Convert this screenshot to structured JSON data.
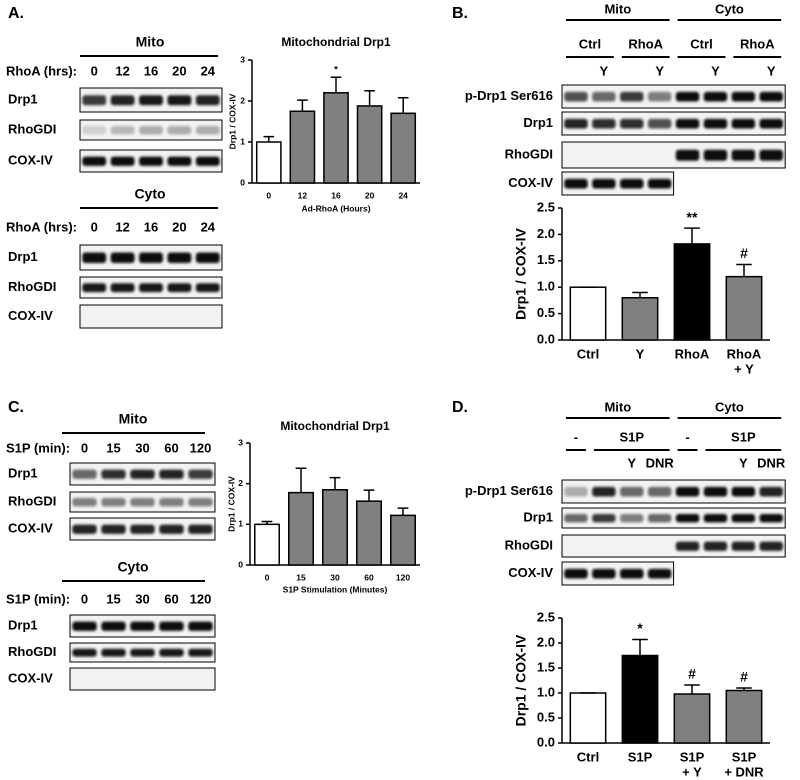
{
  "panels": {
    "A": {
      "letter": "A.",
      "mito": {
        "title": "Mito",
        "lane_header": "RhoA (hrs):",
        "lanes": [
          "0",
          "12",
          "16",
          "20",
          "24"
        ],
        "rows": [
          "Drp1",
          "RhoGDI",
          "COX-IV"
        ]
      },
      "cyto": {
        "title": "Cyto",
        "lane_header": "RhoA (hrs):",
        "lanes": [
          "0",
          "12",
          "16",
          "20",
          "24"
        ],
        "rows": [
          "Drp1",
          "RhoGDI",
          "COX-IV"
        ]
      }
    },
    "B": {
      "letter": "B.",
      "groups": [
        {
          "title": "Mito",
          "treatments": [
            {
              "name": "Ctrl",
              "lanes": [
                null,
                "Y"
              ]
            },
            {
              "name": "RhoA",
              "lanes": [
                null,
                "Y"
              ]
            }
          ]
        },
        {
          "title": "Cyto",
          "treatments": [
            {
              "name": "Ctrl",
              "lanes": [
                null,
                "Y"
              ]
            },
            {
              "name": "RhoA",
              "lanes": [
                null,
                "Y"
              ]
            }
          ]
        }
      ],
      "rows": [
        "p-Drp1 Ser616",
        "Drp1",
        "RhoGDI",
        "COX-IV"
      ]
    },
    "C": {
      "letter": "C.",
      "mito": {
        "title": "Mito",
        "lane_header": "S1P (min):",
        "lanes": [
          "0",
          "15",
          "30",
          "60",
          "120"
        ],
        "rows": [
          "Drp1",
          "RhoGDI",
          "COX-IV"
        ]
      },
      "cyto": {
        "title": "Cyto",
        "lane_header": "S1P (min):",
        "lanes": [
          "0",
          "15",
          "30",
          "60",
          "120"
        ],
        "rows": [
          "Drp1",
          "RhoGDI",
          "COX-IV"
        ]
      }
    },
    "D": {
      "letter": "D.",
      "groups": [
        {
          "title": "Mito",
          "treatments": [
            {
              "name": "-",
              "lanes": [
                null
              ]
            },
            {
              "name": "S1P",
              "lanes": [
                null,
                "Y",
                "DNR"
              ]
            }
          ]
        },
        {
          "title": "Cyto",
          "treatments": [
            {
              "name": "-",
              "lanes": [
                null
              ]
            },
            {
              "name": "S1P",
              "lanes": [
                null,
                "Y",
                "DNR"
              ]
            }
          ]
        }
      ],
      "rows": [
        "p-Drp1 Ser616",
        "Drp1",
        "RhoGDI",
        "COX-IV"
      ]
    }
  },
  "chart_data": [
    {
      "type": "bar",
      "title": "Mitochondrial Drp1",
      "y_label": "Drp1 / COX-IV",
      "x_label": "Ad-RhoA (Hours)",
      "categories": [
        [
          "0"
        ],
        [
          "12"
        ],
        [
          "16"
        ],
        [
          "20"
        ],
        [
          "24"
        ]
      ],
      "values": [
        1.0,
        1.75,
        2.2,
        1.88,
        1.7
      ],
      "errors": [
        0.13,
        0.27,
        0.38,
        0.37,
        0.38
      ],
      "colors": [
        "#ffffff",
        "#808080",
        "#808080",
        "#808080",
        "#808080"
      ],
      "annotations": [
        null,
        null,
        "*",
        null,
        null
      ],
      "ylim": [
        0,
        3
      ],
      "yticks": [
        0,
        1,
        2,
        3
      ],
      "grid": false
    },
    {
      "type": "bar",
      "y_label": "Drp1 / COX-IV",
      "categories": [
        [
          "Ctrl"
        ],
        [
          "Y"
        ],
        [
          "RhoA"
        ],
        [
          "RhoA",
          "+ Y"
        ]
      ],
      "values": [
        1.0,
        0.8,
        1.82,
        1.2
      ],
      "errors": [
        0,
        0.1,
        0.3,
        0.23
      ],
      "colors": [
        "#ffffff",
        "#808080",
        "#000000",
        "#808080"
      ],
      "annotations": [
        null,
        null,
        "**",
        "#"
      ],
      "ylim": [
        0,
        2.5
      ],
      "yticks": [
        {
          "value": 0,
          "label": "0.0"
        },
        0.5,
        {
          "value": 1,
          "label": "1.0"
        },
        1.5,
        {
          "value": 2,
          "label": "2.0"
        },
        2.5
      ],
      "grid": false
    },
    {
      "type": "bar",
      "title": "Mitochondrial Drp1",
      "y_label": "Drp1 / COX-IV",
      "x_label": "S1P Stimulation (Minutes)",
      "categories": [
        [
          "0"
        ],
        [
          "15"
        ],
        [
          "30"
        ],
        [
          "60"
        ],
        [
          "120"
        ]
      ],
      "values": [
        1.0,
        1.78,
        1.85,
        1.57,
        1.22
      ],
      "errors": [
        0.07,
        0.6,
        0.3,
        0.27,
        0.18
      ],
      "colors": [
        "#ffffff",
        "#808080",
        "#808080",
        "#808080",
        "#808080"
      ],
      "annotations": [
        null,
        null,
        null,
        null,
        null
      ],
      "ylim": [
        0,
        3
      ],
      "yticks": [
        0,
        1,
        2,
        3
      ],
      "grid": false
    },
    {
      "type": "bar",
      "y_label": "Drp1 / COX-IV",
      "categories": [
        [
          "Ctrl"
        ],
        [
          "S1P"
        ],
        [
          "S1P",
          "+ Y"
        ],
        [
          "S1P",
          "+ DNR"
        ]
      ],
      "values": [
        1.0,
        1.75,
        0.98,
        1.05
      ],
      "errors": [
        0,
        0.32,
        0.18,
        0.05
      ],
      "colors": [
        "#ffffff",
        "#000000",
        "#808080",
        "#808080"
      ],
      "annotations": [
        null,
        "*",
        "#",
        "#"
      ],
      "ylim": [
        0,
        2.5
      ],
      "yticks": [
        {
          "value": 0,
          "label": "0.0"
        },
        0.5,
        {
          "value": 1,
          "label": "1.0"
        },
        1.5,
        {
          "value": 2,
          "label": "2.0"
        },
        2.5
      ],
      "grid": false
    }
  ]
}
